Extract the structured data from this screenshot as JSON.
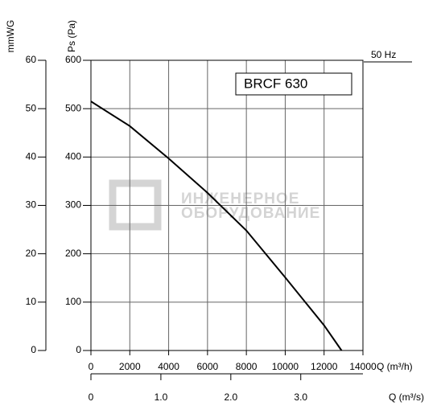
{
  "chart_data": {
    "type": "line",
    "title": "BRCF 630",
    "annotation": "50 Hz",
    "watermark": [
      "ИНЖЕНЕРНОЕ",
      "ОБОРУДОВАНИЕ"
    ],
    "x_label": "Q (m³/h)",
    "y_label": "Ps (Pa)",
    "y2_label": "mmWG",
    "x2_label": "Q (m³/s)",
    "x": [
      0,
      2000,
      4000,
      6000,
      8000,
      10000,
      12000,
      12900
    ],
    "series": [
      {
        "color": "#000000",
        "values": [
          515,
          464,
          397,
          326,
          248,
          151,
          52,
          0
        ]
      }
    ],
    "xlim": [
      0,
      14000
    ],
    "xticks": [
      0,
      2000,
      4000,
      6000,
      8000,
      10000,
      12000,
      14000
    ],
    "ylim": [
      0,
      600
    ],
    "yticks": [
      0,
      100,
      200,
      300,
      400,
      500,
      600
    ],
    "y2lim": [
      0,
      60
    ],
    "y2ticks": [
      0,
      10,
      20,
      30,
      40,
      50,
      60
    ],
    "x2lim": [
      0,
      3.889
    ],
    "x2ticks": [
      0,
      {
        "value": 1,
        "label": "1.0"
      },
      {
        "value": 2,
        "label": "2.0"
      },
      {
        "value": 3,
        "label": "3.0"
      }
    ],
    "grid": true
  }
}
